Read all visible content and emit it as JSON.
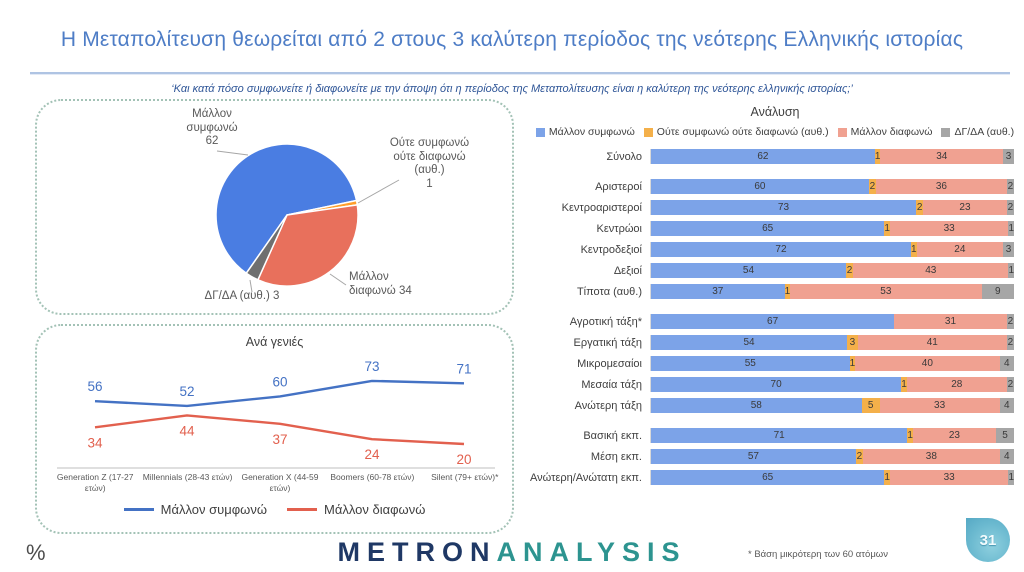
{
  "page": {
    "title": "Η Μεταπολίτευση θεωρείται από 2 στους 3 καλύτερη περίοδος της νεότερης Ελληνικής ιστορίας",
    "subtitle": "‘Και κατά πόσο συμφωνείτε ή διαφωνείτε με την άποψη ότι η περίοδος της Μεταπολίτευσης είναι η καλύτερη της νεότερης ελληνικής ιστορίας;’",
    "footnote": "* Βάση μικρότερη των 60 ατόμων",
    "percent_mark": "%",
    "page_number": "31",
    "logo": {
      "part1": "METRON",
      "part2": "ANALYSIS"
    },
    "colors": {
      "title_blue": "#4E7DC6",
      "logo_navy": "#1F3865",
      "logo_teal": "#2D9490",
      "droplet_teal": "#63B6CD",
      "panel_border": "#A3C2B6"
    }
  },
  "chart_data": [
    {
      "id": "pie",
      "type": "pie",
      "labels": [
        "Μάλλον συμφωνώ",
        "Ούτε συμφωνώ ούτε διαφωνώ (αυθ.)",
        "Μάλλον διαφωνώ",
        "ΔΓ/ΔΑ (αυθ.)"
      ],
      "values": [
        62,
        1,
        34,
        3
      ],
      "colors": [
        "#4A7DE2",
        "#FF9E2B",
        "#E8705C",
        "#6F6F6F"
      ],
      "start_angle_deg": 215,
      "callouts": {
        "agree": [
          "Μάλλον",
          "συμφωνώ",
          "62"
        ],
        "neither": [
          "Ούτε συμφωνώ",
          "ούτε διαφωνώ",
          "(αυθ.)",
          "1"
        ],
        "disagree": [
          "Μάλλον",
          "διαφωνώ 34"
        ],
        "dk": "ΔΓ/ΔΑ (αυθ.) 3"
      }
    },
    {
      "id": "generations",
      "type": "line",
      "title": "Ανά γενιές",
      "categories": [
        [
          "Generation Z (17-27",
          "ετών)"
        ],
        [
          "Millennials (28-43 ετών)"
        ],
        [
          "Generation X (44-59",
          "ετών)"
        ],
        [
          "Boomers (60-78 ετών)"
        ],
        [
          "Silent (79+ ετών)*"
        ]
      ],
      "series": [
        {
          "name": "Μάλλον συμφωνώ",
          "color": "#4472C4",
          "values": [
            56,
            52,
            60,
            73,
            71
          ]
        },
        {
          "name": "Μάλλον διαφωνώ",
          "color": "#E2604E",
          "values": [
            34,
            44,
            37,
            24,
            20
          ]
        }
      ],
      "ylim": [
        15,
        80
      ],
      "grid": false,
      "legend_position": "bottom"
    },
    {
      "id": "analysis",
      "type": "bar",
      "orientation": "horizontal-stacked",
      "title": "Ανάλυση",
      "legend": [
        "Μάλλον συμφωνώ",
        "Ούτε συμφωνώ ούτε διαφωνώ (αυθ.)",
        "Μάλλον διαφωνώ",
        "ΔΓ/ΔΑ (αυθ.)"
      ],
      "colors": [
        "#7CA3E8",
        "#F4B04A",
        "#F0A191",
        "#A6A6A6"
      ],
      "xlim": [
        0,
        100
      ],
      "groups": [
        {
          "rows": [
            {
              "label": "Σύνολο",
              "values": [
                62,
                1,
                34,
                3
              ]
            }
          ]
        },
        {
          "rows": [
            {
              "label": "Αριστεροί",
              "values": [
                60,
                2,
                36,
                2
              ]
            },
            {
              "label": "Κεντροαριστεροί",
              "values": [
                73,
                2,
                23,
                2
              ]
            },
            {
              "label": "Κεντρώοι",
              "values": [
                65,
                1,
                33,
                1
              ]
            },
            {
              "label": "Κεντροδεξιοί",
              "values": [
                72,
                1,
                24,
                3
              ]
            },
            {
              "label": "Δεξιοί",
              "values": [
                54,
                2,
                43,
                1
              ]
            },
            {
              "label": "Τίποτα (αυθ.)",
              "values": [
                37,
                1,
                53,
                9
              ]
            }
          ]
        },
        {
          "rows": [
            {
              "label": "Αγροτική τάξη*",
              "values": [
                67,
                0,
                31,
                2
              ]
            },
            {
              "label": "Εργατική τάξη",
              "values": [
                54,
                3,
                41,
                2
              ]
            },
            {
              "label": "Μικρομεσαίοι",
              "values": [
                55,
                1,
                40,
                4
              ]
            },
            {
              "label": "Μεσαία τάξη",
              "values": [
                70,
                1,
                28,
                2
              ]
            },
            {
              "label": "Ανώτερη τάξη",
              "values": [
                58,
                5,
                33,
                4
              ]
            }
          ]
        },
        {
          "rows": [
            {
              "label": "Βασική εκπ.",
              "values": [
                71,
                1,
                23,
                5
              ]
            },
            {
              "label": "Μέση εκπ.",
              "values": [
                57,
                2,
                38,
                4
              ]
            },
            {
              "label": "Ανώτερη/Ανώτατη εκπ.",
              "values": [
                65,
                1,
                33,
                1
              ]
            }
          ]
        }
      ]
    }
  ]
}
